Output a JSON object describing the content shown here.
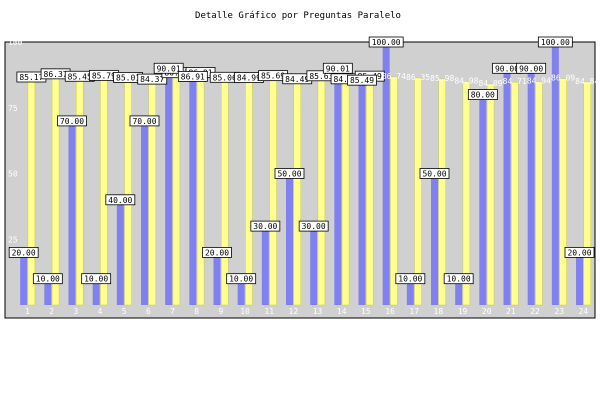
{
  "chart_data": {
    "type": "bar",
    "title": "Detalle Gráfico por Preguntas Paralelo",
    "xlabel": "",
    "ylabel": "",
    "ylim": [
      0,
      100
    ],
    "yticks": [
      25,
      50,
      75,
      100
    ],
    "grid": false,
    "legend": "none",
    "categories": [
      "1",
      "2",
      "3",
      "4",
      "5",
      "6",
      "7",
      "8",
      "9",
      "10",
      "11",
      "12",
      "13",
      "14",
      "15",
      "16",
      "17",
      "18",
      "19",
      "20",
      "21",
      "22",
      "23",
      "24"
    ],
    "series": [
      {
        "color": "#8080f0",
        "values": [
          20,
          10,
          70,
          10,
          40,
          70,
          90.01,
          86.91,
          20,
          10,
          30,
          50,
          30,
          90.01,
          85.49,
          100,
          10,
          50,
          10,
          80,
          90,
          90,
          100,
          20
        ]
      },
      {
        "color": "#ffff90",
        "values": [
          85.17,
          86.37,
          85.45,
          85.79,
          85.01,
          84.37,
          86.81,
          86.91,
          85.06,
          84.99,
          85.69,
          84.49,
          85.63,
          84.48,
          85.49,
          86.74,
          86.35,
          85.98,
          84.98,
          84.09,
          84.71,
          84.94,
          86.09,
          84.84
        ]
      }
    ],
    "value_labels": {
      "a": [
        "20.00",
        "10.00",
        "70.00",
        "10.00",
        "40.00",
        "70.00",
        "90.01",
        "86.91",
        "20.00",
        "10.00",
        "30.00",
        "50.00",
        "30.00",
        "90.01",
        "85.49",
        "100.00",
        "10.00",
        "50.00",
        "10.00",
        "80.00",
        "90.00",
        "90.00",
        "100.00",
        "20.00"
      ],
      "b": [
        "85.17",
        "86.37",
        "85.45",
        "85.79",
        "85.01",
        "84.37",
        "86.81",
        "86.91",
        "85.06",
        "84.99",
        "85.69",
        "84.49",
        "85.63",
        "84.48",
        "85.49",
        "86.74",
        "86.35",
        "85.98",
        "84.98",
        "84.09",
        "84.71",
        "84.94",
        "86.09",
        "84.84"
      ]
    }
  }
}
